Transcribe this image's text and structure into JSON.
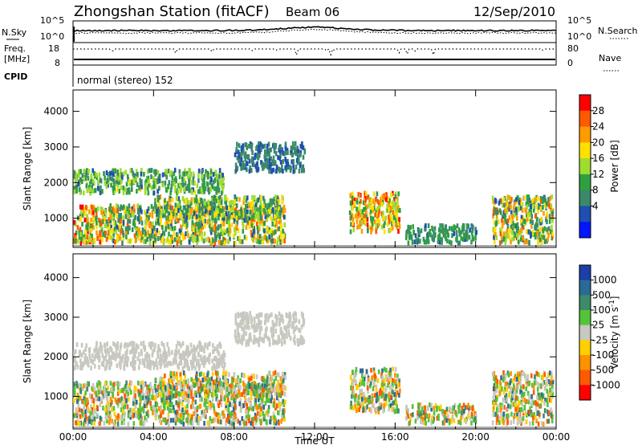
{
  "header": {
    "station": "Zhongshan Station (fitACF)",
    "beam": "Beam 06",
    "date": "12/Sep/2010"
  },
  "status_panel": {
    "left_labels": [
      "N.Sky",
      "Freq.",
      "[MHz]",
      "CPID"
    ],
    "left_ticks_top": [
      "10^5",
      "10^0"
    ],
    "left_ticks_mid": [
      "18",
      "8"
    ],
    "right_ticks_top": [
      "10^5",
      "10^0"
    ],
    "right_ticks_mid": [
      "80",
      "0"
    ],
    "right_labels": [
      "N.Search",
      "Nave"
    ],
    "cpid_text": "normal (stereo) 152"
  },
  "chart_data": [
    {
      "type": "heatmap",
      "name_on_chart": "Power [dB]",
      "xlabel": "Time UT",
      "ylabel": "Slant Range [km]",
      "x_ticks": [
        "00:00",
        "04:00",
        "08:00",
        "12:00",
        "16:00",
        "20:00",
        "00:00"
      ],
      "y_ticks": [
        "1000",
        "2000",
        "3000",
        "4000"
      ],
      "xlim": [
        "00:00",
        "24:00"
      ],
      "ylim": [
        180,
        4600
      ],
      "colorbar_label": "Power [dB]",
      "colorbar_ticks": [
        "28",
        "24",
        "20",
        "16",
        "12",
        "8",
        "4"
      ],
      "colorbar_colors": [
        "#ff0000",
        "#ff5a00",
        "#ff9a00",
        "#ffe000",
        "#9fdc30",
        "#2fa040",
        "#3a8a6a",
        "#1f4fb0",
        "#0016ff"
      ],
      "echo_regions": [
        {
          "t": [
            0.0,
            1.5
          ],
          "range_km": [
            300,
            1350
          ],
          "power_db": [
            8,
            28
          ]
        },
        {
          "t": [
            0.0,
            7.5
          ],
          "range_km": [
            1700,
            2350
          ],
          "power_db": [
            4,
            16
          ]
        },
        {
          "t": [
            1.5,
            10.5
          ],
          "range_km": [
            300,
            1350
          ],
          "power_db": [
            4,
            24
          ]
        },
        {
          "t": [
            4.0,
            10.5
          ],
          "range_km": [
            1000,
            1600
          ],
          "power_db": [
            4,
            20
          ]
        },
        {
          "t": [
            8.0,
            11.5
          ],
          "range_km": [
            2300,
            3100
          ],
          "power_db": [
            4,
            8
          ]
        },
        {
          "t": [
            13.7,
            16.2
          ],
          "range_km": [
            600,
            1700
          ],
          "power_db": [
            8,
            28
          ]
        },
        {
          "t": [
            16.5,
            20.0
          ],
          "range_km": [
            300,
            800
          ],
          "power_db": [
            4,
            12
          ]
        },
        {
          "t": [
            20.8,
            23.8
          ],
          "range_km": [
            300,
            1600
          ],
          "power_db": [
            4,
            24
          ]
        }
      ]
    },
    {
      "type": "heatmap",
      "name_on_chart": "Velocity [m s^-1]",
      "xlabel": "Time UT",
      "ylabel": "Slant Range [km]",
      "x_ticks": [
        "00:00",
        "04:00",
        "08:00",
        "12:00",
        "16:00",
        "20:00",
        "00:00"
      ],
      "y_ticks": [
        "1000",
        "2000",
        "3000",
        "4000"
      ],
      "xlim": [
        "00:00",
        "24:00"
      ],
      "ylim": [
        180,
        4600
      ],
      "colorbar_label": "Velocity [m s",
      "colorbar_label_sup": "-1",
      "colorbar_label_end": "]",
      "colorbar_ticks": [
        "1000",
        "500",
        "100",
        "25",
        "-25",
        "-100",
        "-500",
        "-1000"
      ],
      "colorbar_colors": [
        "#1a3fa8",
        "#2b6a96",
        "#3c8a6a",
        "#55c23a",
        "#c8c8c0",
        "#ffd000",
        "#ff9200",
        "#ff5a00",
        "#ff0000"
      ],
      "echo_regions": [
        {
          "t": [
            0.0,
            1.5
          ],
          "range_km": [
            300,
            1350
          ],
          "velocity": [
            -500,
            100
          ]
        },
        {
          "t": [
            0.0,
            7.5
          ],
          "range_km": [
            1700,
            2350
          ],
          "velocity": [
            -25,
            25
          ]
        },
        {
          "t": [
            1.5,
            10.5
          ],
          "range_km": [
            300,
            1350
          ],
          "velocity": [
            -500,
            25
          ]
        },
        {
          "t": [
            4.0,
            10.5
          ],
          "range_km": [
            1000,
            1600
          ],
          "velocity": [
            -25,
            100
          ]
        },
        {
          "t": [
            8.0,
            11.5
          ],
          "range_km": [
            2300,
            3100
          ],
          "velocity": [
            -25,
            25
          ]
        },
        {
          "t": [
            13.7,
            16.2
          ],
          "range_km": [
            600,
            1700
          ],
          "velocity": [
            -500,
            500
          ]
        },
        {
          "t": [
            16.5,
            20.0
          ],
          "range_km": [
            300,
            800
          ],
          "velocity": [
            -100,
            500
          ]
        },
        {
          "t": [
            20.8,
            23.8
          ],
          "range_km": [
            300,
            1600
          ],
          "velocity": [
            -500,
            500
          ]
        }
      ]
    }
  ]
}
